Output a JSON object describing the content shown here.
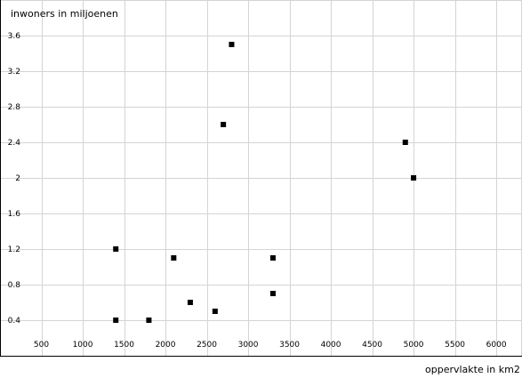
{
  "chart_data": {
    "type": "scatter",
    "xlabel": "oppervlakte in km2",
    "ylabel": "inwoners in miljoenen",
    "xlim": [
      0,
      6300
    ],
    "ylim": [
      0,
      4.0
    ],
    "x_ticks": [
      500,
      1000,
      1500,
      2000,
      2500,
      3000,
      3500,
      4000,
      4500,
      5000,
      5500,
      6000
    ],
    "y_ticks": [
      0.4,
      0.8,
      1.2,
      1.6,
      2.0,
      2.4,
      2.8,
      3.2,
      3.6
    ],
    "x_tick_labels": [
      "500",
      "1000",
      "1500",
      "2000",
      "2500",
      "3000",
      "3500",
      "4000",
      "4500",
      "5000",
      "5500",
      "6000"
    ],
    "y_tick_labels": [
      "0.4",
      "0.8",
      "1.2",
      "1.6",
      "2",
      "2.4",
      "2.8",
      "3.2",
      "3.6"
    ],
    "grid": true,
    "marker_color": "#000000",
    "grid_color": "#d4d4d4",
    "points": [
      {
        "x": 1400,
        "y": 1.2
      },
      {
        "x": 1400,
        "y": 0.4
      },
      {
        "x": 1800,
        "y": 0.4
      },
      {
        "x": 2100,
        "y": 1.1
      },
      {
        "x": 2300,
        "y": 0.6
      },
      {
        "x": 2600,
        "y": 0.5
      },
      {
        "x": 2700,
        "y": 2.6
      },
      {
        "x": 2800,
        "y": 3.5
      },
      {
        "x": 3300,
        "y": 1.1
      },
      {
        "x": 3300,
        "y": 0.7
      },
      {
        "x": 4900,
        "y": 2.4
      },
      {
        "x": 5000,
        "y": 2.0
      }
    ]
  }
}
